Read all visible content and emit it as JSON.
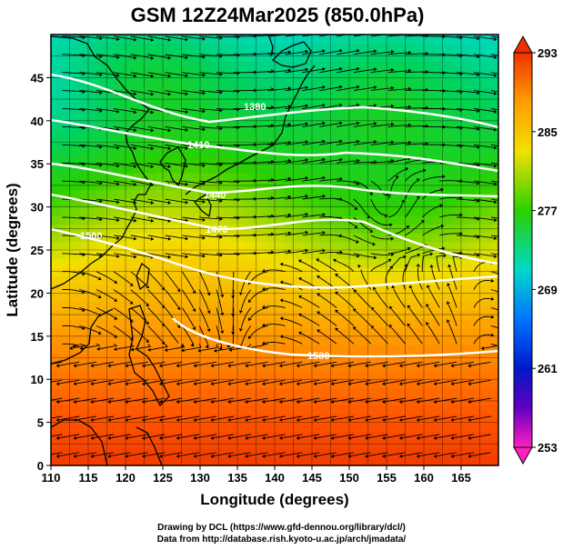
{
  "chart_data": {
    "type": "heatmap",
    "title": "GSM 12Z24Mar2025 (850.0hPa)",
    "xlabel": "Longitude (degrees)",
    "ylabel": "Latitude  (degrees)",
    "xlim": [
      110,
      170
    ],
    "ylim": [
      0,
      50
    ],
    "x_ticks": [
      "110",
      "115",
      "120",
      "125",
      "130",
      "135",
      "140",
      "145",
      "150",
      "155",
      "160",
      "165"
    ],
    "y_ticks": [
      "0",
      "5",
      "10",
      "15",
      "20",
      "25",
      "30",
      "35",
      "40",
      "45"
    ],
    "grid": true,
    "colorbar": {
      "range": [
        253,
        293
      ],
      "tick_labels": [
        "293",
        "285",
        "277",
        "269",
        "261",
        "253"
      ],
      "placement": "right"
    },
    "contour_labels": [
      "1380",
      "1410",
      "1440",
      "1470",
      "1500",
      "1530"
    ],
    "overlays": [
      "temperature shading",
      "geopotential height contours",
      "wind streamlines",
      "coastlines"
    ]
  },
  "credits": {
    "line1": "Drawing by DCL (https://www.gfd-dennou.org/library/dcl/)",
    "line2": "Data from http://database.rish.kyoto-u.ac.jp/arch/jmadata/"
  }
}
